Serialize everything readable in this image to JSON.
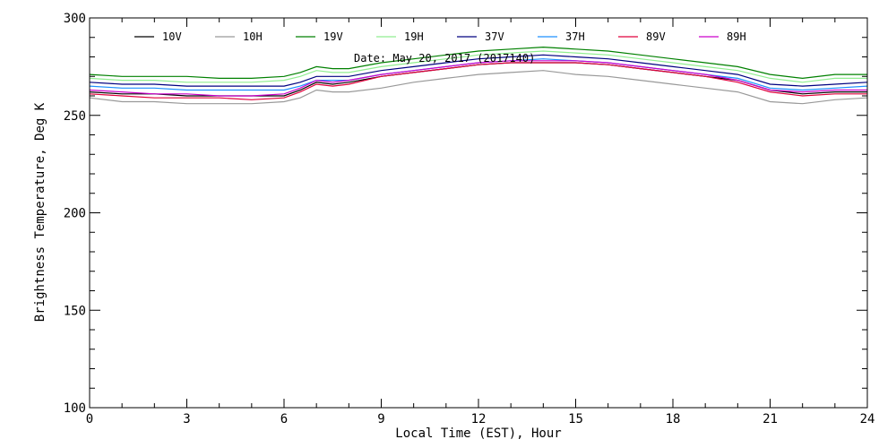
{
  "chart_data": {
    "type": "line",
    "title": "",
    "annotation": "Date: May 20, 2017 (2017140)",
    "xlabel": "Local Time (EST), Hour",
    "ylabel": "Brightness Temperature, Deg K",
    "xlim": [
      0,
      24
    ],
    "ylim": [
      100,
      300
    ],
    "xticks": [
      0,
      3,
      6,
      9,
      12,
      15,
      18,
      21,
      24
    ],
    "yticks": [
      100,
      150,
      200,
      250,
      300
    ],
    "xtick_labels": [
      "0",
      "3",
      "6",
      "9",
      "12",
      "15",
      "18",
      "21",
      "24"
    ],
    "ytick_labels": [
      "100",
      "150",
      "200",
      "250",
      "300"
    ],
    "grid": false,
    "legend_position": "top",
    "x": [
      0,
      1,
      2,
      3,
      4,
      5,
      6,
      6.5,
      7,
      7.5,
      8,
      9,
      10,
      11,
      12,
      13,
      14,
      15,
      16,
      17,
      18,
      19,
      20,
      21,
      22,
      23,
      24
    ],
    "series": [
      {
        "name": "10V",
        "color": "#000000",
        "values": [
          262,
          261,
          261,
          260,
          260,
          260,
          260,
          263,
          267,
          266,
          267,
          270,
          272,
          274,
          276,
          277,
          277,
          277,
          276,
          274,
          272,
          270,
          268,
          263,
          261,
          262,
          262
        ]
      },
      {
        "name": "10H",
        "color": "#999999",
        "values": [
          259,
          257,
          257,
          256,
          256,
          256,
          257,
          259,
          263,
          262,
          262,
          264,
          267,
          269,
          271,
          272,
          273,
          271,
          270,
          268,
          266,
          264,
          262,
          257,
          256,
          258,
          259
        ]
      },
      {
        "name": "19V",
        "color": "#008000",
        "values": [
          271,
          270,
          270,
          270,
          269,
          269,
          270,
          272,
          275,
          274,
          274,
          277,
          279,
          281,
          283,
          284,
          285,
          284,
          283,
          281,
          279,
          277,
          275,
          271,
          269,
          271,
          271
        ]
      },
      {
        "name": "19H",
        "color": "#90ee90",
        "values": [
          269,
          268,
          268,
          267,
          267,
          267,
          268,
          270,
          273,
          272,
          272,
          275,
          277,
          279,
          281,
          282,
          283,
          282,
          281,
          279,
          277,
          275,
          273,
          269,
          267,
          269,
          269
        ]
      },
      {
        "name": "37V",
        "color": "#000080",
        "values": [
          267,
          266,
          266,
          265,
          265,
          265,
          265,
          267,
          270,
          270,
          270,
          273,
          275,
          277,
          279,
          280,
          281,
          280,
          279,
          277,
          275,
          273,
          271,
          266,
          265,
          266,
          267
        ]
      },
      {
        "name": "37H",
        "color": "#1e90ff",
        "values": [
          265,
          264,
          264,
          263,
          263,
          263,
          263,
          265,
          268,
          268,
          268,
          271,
          273,
          275,
          277,
          278,
          279,
          278,
          277,
          275,
          273,
          271,
          269,
          264,
          263,
          264,
          265
        ]
      },
      {
        "name": "89V",
        "color": "#e0003c",
        "values": [
          261,
          260,
          259,
          259,
          259,
          258,
          259,
          262,
          266,
          265,
          266,
          270,
          272,
          274,
          276,
          277,
          277,
          277,
          276,
          274,
          272,
          270,
          267,
          262,
          260,
          261,
          261
        ]
      },
      {
        "name": "89H",
        "color": "#cc00cc",
        "values": [
          263,
          262,
          261,
          261,
          260,
          260,
          261,
          264,
          268,
          267,
          268,
          271,
          273,
          275,
          277,
          278,
          278,
          278,
          277,
          275,
          273,
          271,
          268,
          263,
          262,
          263,
          263
        ]
      }
    ]
  }
}
